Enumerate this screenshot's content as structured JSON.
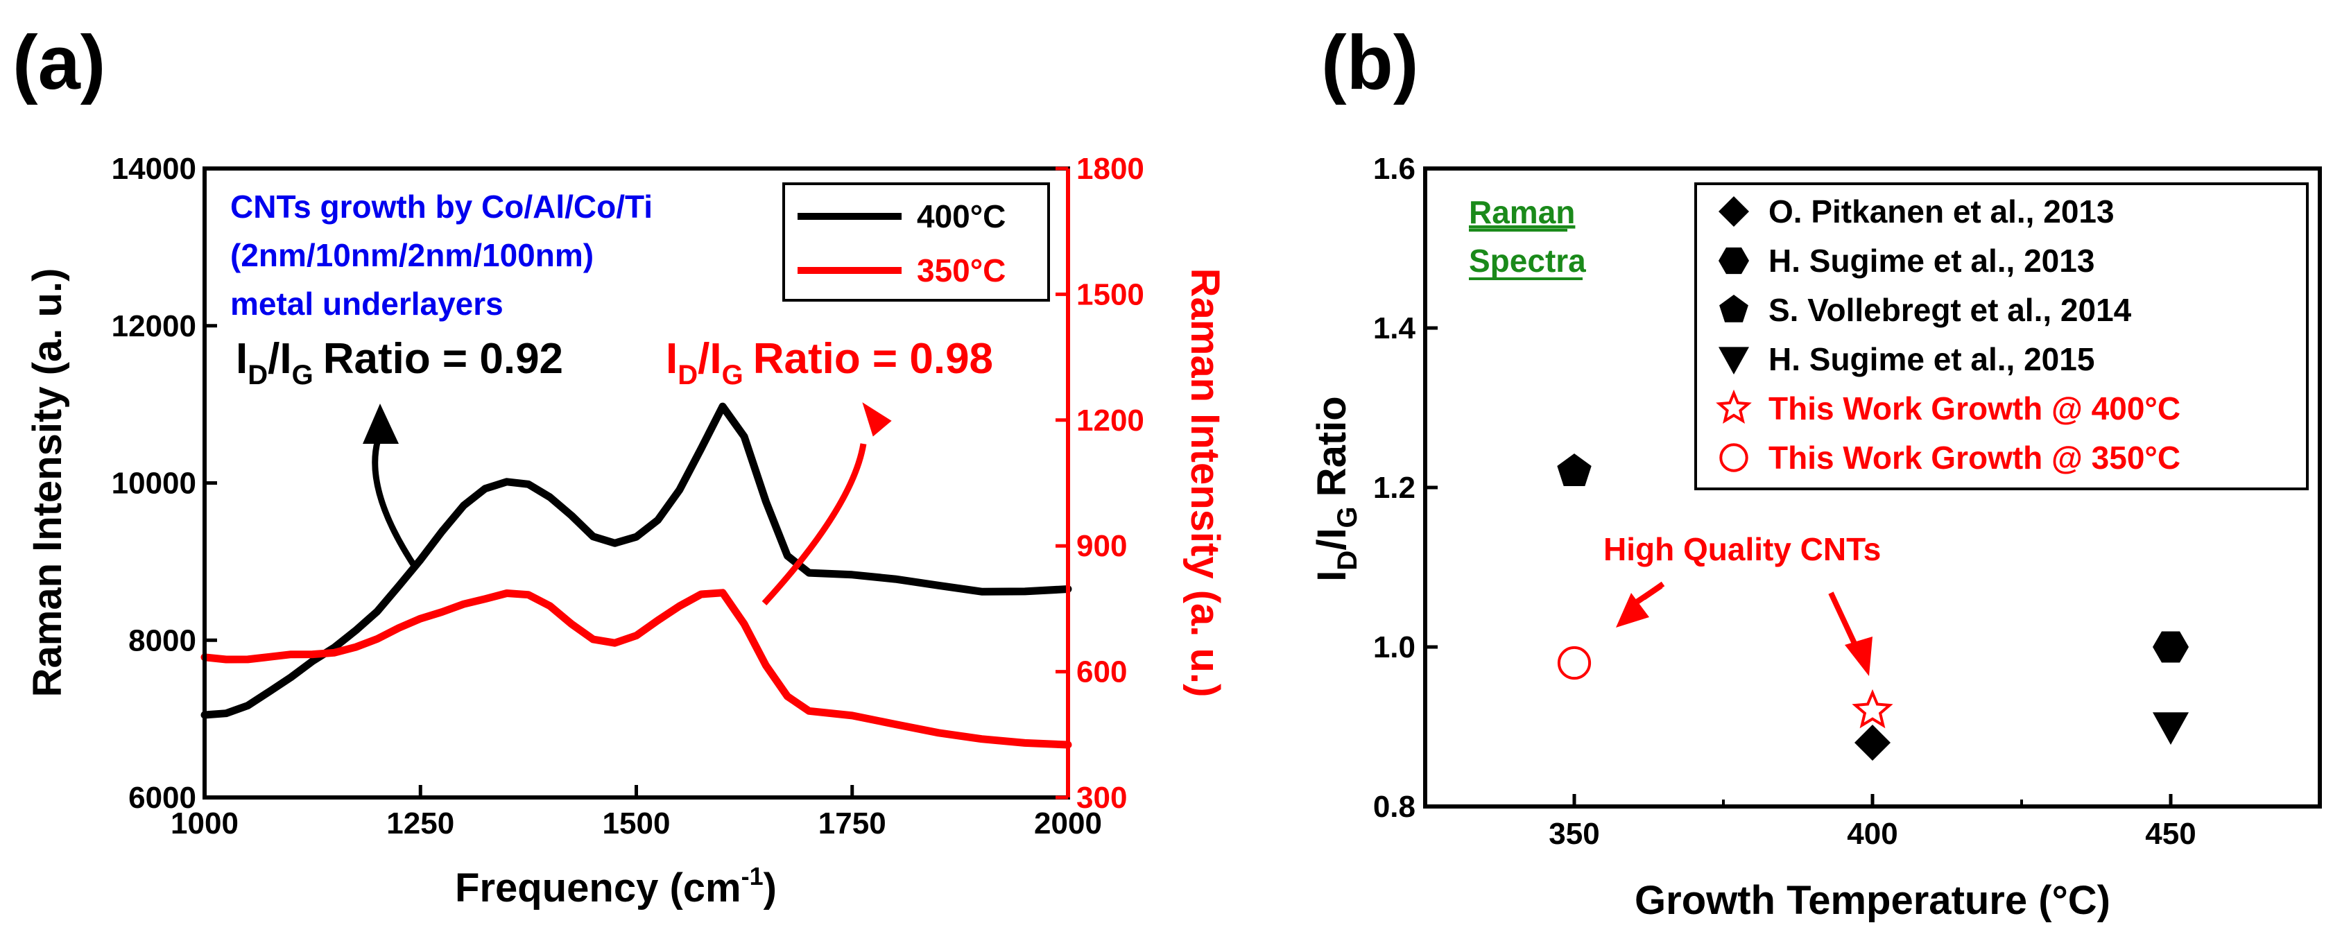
{
  "panels": {
    "a": "(a)",
    "b": "(b)"
  },
  "chart_data": [
    {
      "type": "line",
      "panel": "a",
      "xlabel": "Frequency (cm",
      "xlabel_sup": "-1",
      "xlabel_end": ")",
      "ylabel": "Raman Intensity (a. u.)",
      "y2label": "Raman Intensity (a. u.)",
      "xlim": [
        1000,
        2000
      ],
      "ylim": [
        6000,
        14000
      ],
      "y2lim": [
        300,
        1800
      ],
      "xticks": [
        "1000",
        "1250",
        "1500",
        "1750",
        "2000"
      ],
      "yticks": [
        "6000",
        "8000",
        "10000",
        "12000",
        "14000"
      ],
      "y2ticks": [
        "300",
        "600",
        "900",
        "1200",
        "1500",
        "1800"
      ],
      "x": [
        1000,
        1025,
        1050,
        1075,
        1100,
        1125,
        1150,
        1175,
        1200,
        1225,
        1250,
        1275,
        1300,
        1325,
        1350,
        1375,
        1400,
        1425,
        1450,
        1475,
        1500,
        1525,
        1550,
        1575,
        1600,
        1625,
        1650,
        1675,
        1700,
        1750,
        1800,
        1850,
        1900,
        1950,
        2000
      ],
      "series": [
        {
          "name": "400°C",
          "axis": "left",
          "color": "#000000",
          "values": [
            7050,
            7100,
            7200,
            7350,
            7500,
            7700,
            7900,
            8150,
            8400,
            8700,
            9000,
            9350,
            9700,
            9950,
            10050,
            10000,
            9800,
            9550,
            9300,
            9250,
            9350,
            9550,
            9900,
            10400,
            10950,
            10600,
            9800,
            9100,
            8850,
            8800,
            8750,
            8700,
            8650,
            8650,
            8650
          ]
        },
        {
          "name": "350°C",
          "axis": "right",
          "color": "#ff0000",
          "values": [
            640,
            635,
            630,
            630,
            635,
            640,
            650,
            665,
            680,
            700,
            720,
            740,
            765,
            780,
            790,
            780,
            750,
            710,
            680,
            675,
            690,
            720,
            750,
            780,
            790,
            720,
            620,
            540,
            500,
            490,
            475,
            460,
            445,
            430,
            420
          ]
        }
      ],
      "legend": [
        "400°C",
        "350°C"
      ],
      "annotations": {
        "growth_line1": "CNTs growth by Co/Al/Co/Ti",
        "growth_line2": "(2nm/10nm/2nm/100nm)",
        "growth_line3": "metal underlayers",
        "ratio_400": {
          "I": "I",
          "D": "D",
          "slash": "/I",
          "G": "G",
          "text": "Ratio = 0.92"
        },
        "ratio_350": {
          "I": "I",
          "D": "D",
          "slash": "/I",
          "G": "G",
          "text": "Ratio = 0.98"
        }
      }
    },
    {
      "type": "scatter",
      "panel": "b",
      "xlabel": "Growth Temperature (°C)",
      "ylabel_parts": {
        "I": "I",
        "D": "D",
        "slash": "/I",
        "G": "G",
        "text": "Ratio"
      },
      "xlim": [
        325,
        475
      ],
      "ylim": [
        0.8,
        1.6
      ],
      "xticks": [
        "350",
        "400",
        "450"
      ],
      "yticks": [
        "0.8",
        "1.0",
        "1.2",
        "1.4",
        "1.6"
      ],
      "series": [
        {
          "name": "O. Pitkanen et al., 2013",
          "marker": "diamond",
          "color": "#000000",
          "points": [
            [
              400,
              0.88
            ]
          ]
        },
        {
          "name": "H. Sugime et al., 2013",
          "marker": "hexagon",
          "color": "#000000",
          "points": [
            [
              450,
              1.0
            ]
          ]
        },
        {
          "name": "S. Vollebregt et al., 2014",
          "marker": "pentagon",
          "color": "#000000",
          "points": [
            [
              350,
              1.22
            ]
          ]
        },
        {
          "name": "H. Sugime et al., 2015",
          "marker": "triangle-down",
          "color": "#000000",
          "points": [
            [
              450,
              0.9
            ]
          ]
        },
        {
          "name": "This Work Growth @ 400°C",
          "marker": "star-open",
          "color": "#ff0000",
          "points": [
            [
              400,
              0.92
            ]
          ]
        },
        {
          "name": "This Work Growth @ 350°C",
          "marker": "circle-open",
          "color": "#ff0000",
          "points": [
            [
              350,
              0.98
            ]
          ]
        }
      ],
      "annotations": {
        "raman_line1": "Raman",
        "raman_line2": "Spectra",
        "high_quality": "High Quality CNTs"
      }
    }
  ]
}
